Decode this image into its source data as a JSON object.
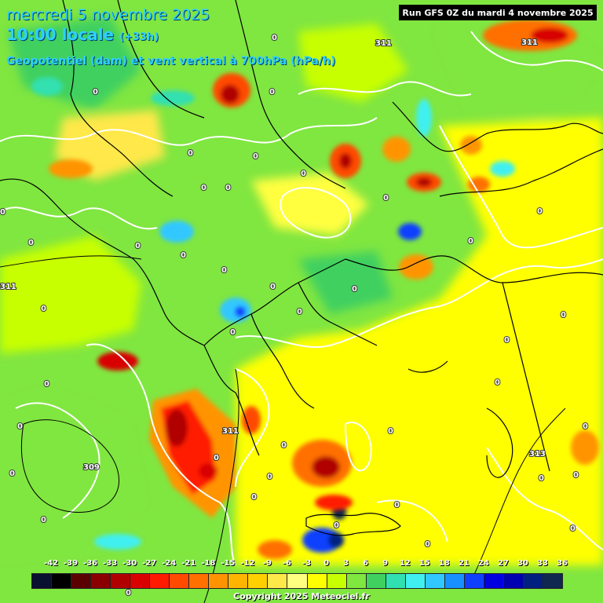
{
  "header": {
    "date_line": "mercredi 5 novembre 2025",
    "time_line": "10:00 locale",
    "time_offset": "(+33h)",
    "parameter_line": "Geopotentiel (dam) et vent vertical à 700hPa (hPa/h)",
    "run_info": "Run GFS 0Z du mardi 4 novembre 2025"
  },
  "legend": {
    "ticks": [
      "-42",
      "-39",
      "-36",
      "-33",
      "-30",
      "-27",
      "-24",
      "-21",
      "-18",
      "-15",
      "-12",
      "-9",
      "-6",
      "-3",
      "0",
      "3",
      "6",
      "9",
      "12",
      "15",
      "18",
      "21",
      "24",
      "27",
      "30",
      "33",
      "36"
    ],
    "colors": [
      "#0a1030",
      "#000000",
      "#5a0000",
      "#8a0000",
      "#b00000",
      "#d80000",
      "#ff1a00",
      "#ff4a00",
      "#ff7000",
      "#ff9400",
      "#ffb400",
      "#ffd000",
      "#ffe84a",
      "#ffff80",
      "#ffff00",
      "#c8ff00",
      "#80e640",
      "#40d060",
      "#30e0b0",
      "#40f0f0",
      "#30c8ff",
      "#1890ff",
      "#1040ff",
      "#0000e0",
      "#0000b0",
      "#002080",
      "#102850"
    ]
  },
  "contour_labels": {
    "geopotential": [
      "311",
      "311",
      "311",
      "311",
      "311",
      "309",
      "313"
    ],
    "zero_line": [
      "0",
      "0",
      "0",
      "0",
      "0",
      "0",
      "0",
      "0",
      "0",
      "0",
      "0",
      "0",
      "0",
      "0",
      "0",
      "0",
      "0",
      "0",
      "0",
      "0",
      "0",
      "0",
      "0",
      "0",
      "0",
      "0",
      "0",
      "0",
      "0",
      "0",
      "0",
      "0",
      "0",
      "0",
      "0",
      "0",
      "0",
      "0",
      "0",
      "0",
      "0"
    ]
  },
  "copyright": "Copyright 2025 Meteociel.fr",
  "colors": {
    "title": "#2fd0ff",
    "zero_contour": "#ffffff",
    "coast": "#000000"
  },
  "icons": [
    "map-field"
  ]
}
